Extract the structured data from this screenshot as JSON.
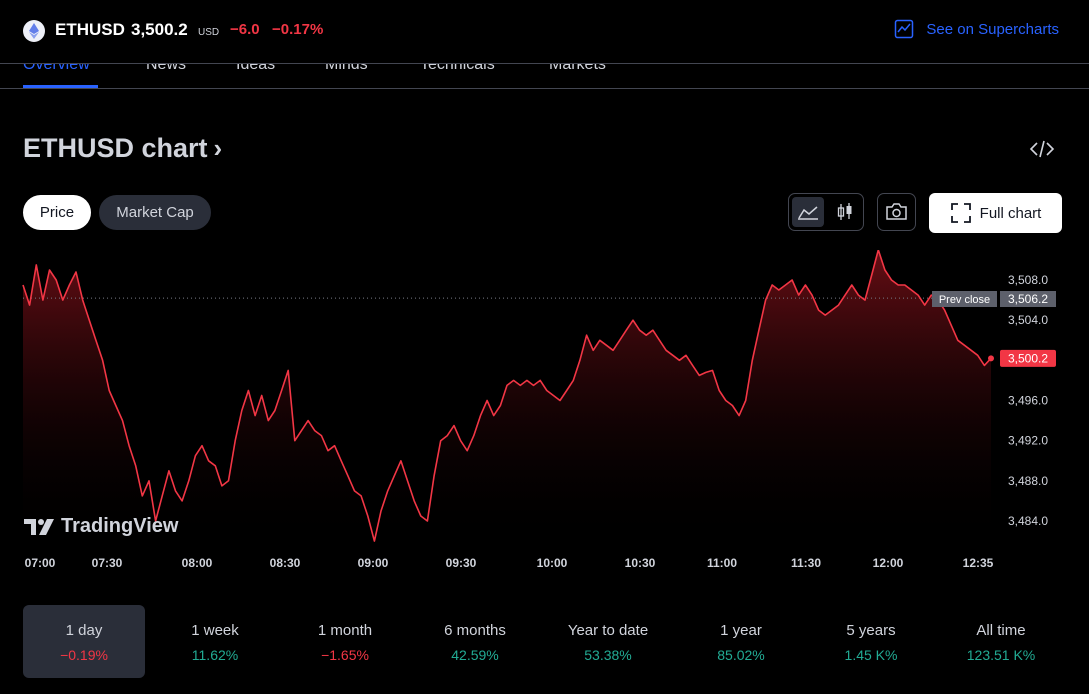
{
  "header": {
    "symbol": "ETHUSD",
    "price": "3,500.2",
    "currency": "USD",
    "change_abs": "−6.0",
    "change_pct": "−0.17%",
    "supercharts_label": "See on Supercharts"
  },
  "nav": {
    "tabs": [
      {
        "label": "Overview",
        "active": true
      },
      {
        "label": "News"
      },
      {
        "label": "Ideas"
      },
      {
        "label": "Minds"
      },
      {
        "label": "Technicals"
      },
      {
        "label": "Markets"
      }
    ]
  },
  "chart_section": {
    "title": "ETHUSD chart",
    "pills": {
      "price": "Price",
      "market_cap": "Market Cap"
    },
    "full_chart_label": "Full chart",
    "brand": "TradingView"
  },
  "icons": {
    "logo": "ethereum-icon",
    "supercharts": "chart-line-icon",
    "embed": "code-icon",
    "area": "area-chart-icon",
    "candles": "candlestick-icon",
    "camera": "camera-icon",
    "fullscreen": "fullscreen-icon"
  },
  "colors": {
    "accent": "#2962ff",
    "negative": "#f23645",
    "positive": "#22ab94",
    "line": "#f23645"
  },
  "chart_data": {
    "type": "area",
    "x_ticks": [
      "07:00",
      "07:30",
      "08:00",
      "08:30",
      "09:00",
      "09:30",
      "10:00",
      "10:30",
      "11:00",
      "11:30",
      "12:00",
      "12:35"
    ],
    "y_ticks": [
      "3,508.0",
      "3,504.0",
      "3,496.0",
      "3,492.0",
      "3,488.0",
      "3,484.0"
    ],
    "ylim": [
      3481.6,
      3510.0
    ],
    "prev_close": {
      "label": "Prev close",
      "value": 3506.2,
      "text": "3,506.2"
    },
    "last_value": {
      "value": 3500.2,
      "text": "3,500.2"
    },
    "series": [
      {
        "values": [
          3507.5,
          3505.5,
          3509.5,
          3506,
          3509,
          3508,
          3506,
          3507.5,
          3508.8,
          3506,
          3504,
          3502,
          3500,
          3497,
          3495.5,
          3494,
          3491.5,
          3489.5,
          3486.5,
          3488,
          3484,
          3486.5,
          3489,
          3487,
          3486,
          3488,
          3490.5,
          3491.5,
          3490,
          3489.5,
          3487.5,
          3488,
          3492,
          3495,
          3497,
          3494.5,
          3496.5,
          3494,
          3495,
          3497,
          3499,
          3492,
          3493,
          3494,
          3493,
          3492.5,
          3491,
          3491.5,
          3490,
          3488.5,
          3487,
          3486.5,
          3484.5,
          3482,
          3485,
          3487,
          3488.5,
          3490,
          3488,
          3486,
          3484.5,
          3484,
          3488.5,
          3492,
          3492.5,
          3493.5,
          3492,
          3491,
          3492.5,
          3494.5,
          3496,
          3494.5,
          3495.5,
          3497.5,
          3498,
          3497.5,
          3498,
          3497.5,
          3498,
          3497,
          3496.5,
          3496,
          3497,
          3498,
          3500,
          3502.5,
          3501,
          3502,
          3501.5,
          3501,
          3502,
          3503,
          3504,
          3503,
          3502.5,
          3503,
          3502,
          3501,
          3500.5,
          3500,
          3500.5,
          3499.5,
          3498.5,
          3498.8,
          3499,
          3497,
          3496,
          3495.5,
          3494.5,
          3496,
          3500,
          3503,
          3506,
          3507.5,
          3507,
          3507.5,
          3508,
          3506.5,
          3507.5,
          3506.5,
          3505,
          3504.5,
          3505,
          3505.5,
          3506.5,
          3507.5,
          3506.5,
          3506,
          3508.5,
          3511,
          3509,
          3508,
          3507.5,
          3507.5,
          3507,
          3506.5,
          3505.5,
          3506.5,
          3506,
          3505,
          3503.5,
          3502,
          3501.5,
          3501,
          3500.5,
          3499.5,
          3500.2
        ]
      }
    ]
  },
  "periods": [
    {
      "label": "1 day",
      "value": "−0.19%",
      "trend": "neg",
      "active": true
    },
    {
      "label": "1 week",
      "value": "11.62%",
      "trend": "pos"
    },
    {
      "label": "1 month",
      "value": "−1.65%",
      "trend": "neg"
    },
    {
      "label": "6 months",
      "value": "42.59%",
      "trend": "pos"
    },
    {
      "label": "Year to date",
      "value": "53.38%",
      "trend": "pos"
    },
    {
      "label": "1 year",
      "value": "85.02%",
      "trend": "pos"
    },
    {
      "label": "5 years",
      "value": "1.45 K%",
      "trend": "pos"
    },
    {
      "label": "All time",
      "value": "123.51 K%",
      "trend": "pos"
    }
  ]
}
